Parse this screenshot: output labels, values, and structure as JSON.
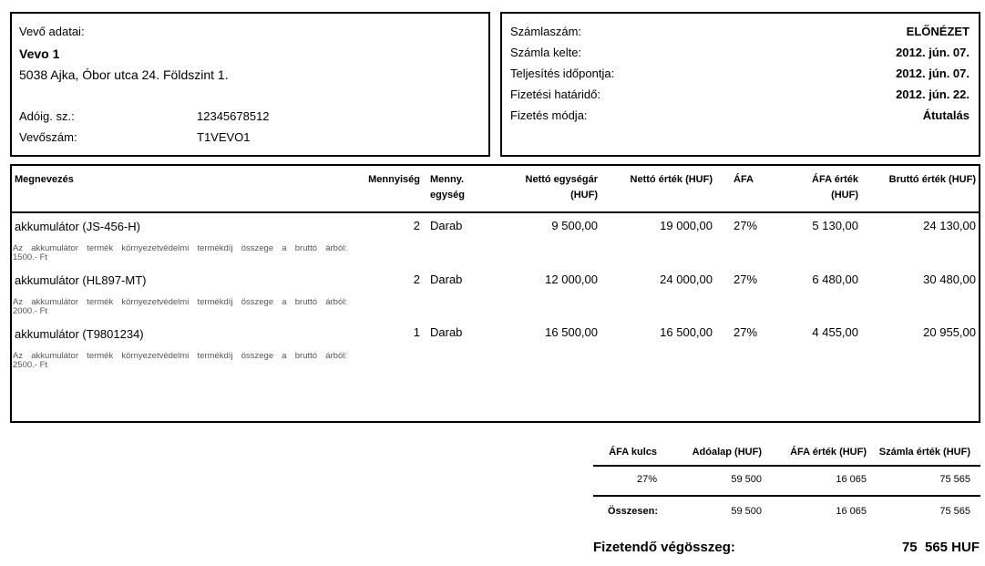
{
  "buyer": {
    "heading": "Vevő adatai:",
    "name": "Vevo 1",
    "address": "5038 Ajka, Óbor utca 24. Földszint 1.",
    "tax_label": "Adóig. sz.:",
    "tax_value": "12345678512",
    "customer_label": "Vevőszám:",
    "customer_value": "T1VEVO1"
  },
  "invoice": {
    "number_label": "Számlaszám:",
    "number_value": "ELŐNÉZET",
    "date_label": "Számla kelte:",
    "date_value": "2012. jún. 07.",
    "fulfil_label": "Teljesítés időpontja:",
    "fulfil_value": "2012. jún. 07.",
    "due_label": "Fizetési határidő:",
    "due_value": "2012. jún. 22.",
    "method_label": "Fizetés módja:",
    "method_value": "Átutalás"
  },
  "table": {
    "headers": {
      "name": "Megnevezés",
      "qty": "Mennyiség",
      "unit_1": "Menny.",
      "unit_2": "egység",
      "net_unit_1": "Nettó egységár",
      "net_unit_2": "(HUF)",
      "net_value": "Nettó érték (HUF)",
      "vat": "ÁFA",
      "vat_value_1": "ÁFA érték",
      "vat_value_2": "(HUF)",
      "gross": "Bruttó érték (HUF)"
    },
    "rows": [
      {
        "name": "akkumulátor (JS-456-H)",
        "qty": "2",
        "unit": "Darab",
        "net_unit": "9 500,00",
        "net_value": "19 000,00",
        "vat": "27%",
        "vat_value": "5 130,00",
        "gross": "24 130,00",
        "note_1": "Az akkumulátor termék környezetvédelmi termékdíj összege a bruttó árból:",
        "note_2": "1500.- Ft"
      },
      {
        "name": "akkumulátor (HL897-MT)",
        "qty": "2",
        "unit": "Darab",
        "net_unit": "12 000,00",
        "net_value": "24 000,00",
        "vat": "27%",
        "vat_value": "6 480,00",
        "gross": "30 480,00",
        "note_1": "Az akkumulátor termék környezetvédelmi termékdíj összege a bruttó árból:",
        "note_2": "2000.- Ft"
      },
      {
        "name": "akkumulátor (T9801234)",
        "qty": "1",
        "unit": "Darab",
        "net_unit": "16 500,00",
        "net_value": "16 500,00",
        "vat": "27%",
        "vat_value": "4 455,00",
        "gross": "20 955,00",
        "note_1": "Az akkumulátor termék környezetvédelmi termékdíj összege a bruttó árból:",
        "note_2": "2500.- Ft"
      }
    ]
  },
  "summary": {
    "headers": {
      "rate": "ÁFA kulcs",
      "base": "Adóalap (HUF)",
      "vat": "ÁFA érték (HUF)",
      "total": "Számla érték (HUF)"
    },
    "row": {
      "rate": "27%",
      "base": "59 500",
      "vat": "16 065",
      "total": "75 565"
    },
    "sum": {
      "label": "Összesen:",
      "base": "59 500",
      "vat": "16 065",
      "total": "75 565"
    }
  },
  "payable": {
    "label": "Fizetendő végösszeg:",
    "value": "75  565 HUF"
  }
}
